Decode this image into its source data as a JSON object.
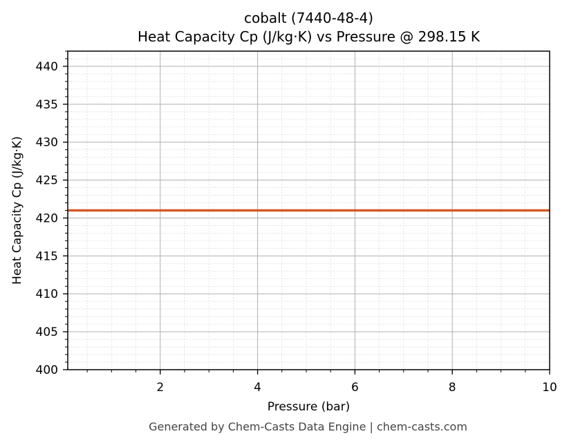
{
  "title": {
    "line1": "cobalt (7440-48-4)",
    "line2": "Heat Capacity Cp (J/kg·K) vs Pressure @ 298.15 K"
  },
  "footer": "Generated by Chem-Casts Data Engine | chem-casts.com",
  "colors": {
    "series": "#d35a2a",
    "axis": "#000000",
    "major_grid": "#b0b0b0",
    "minor_grid": "#dddddd",
    "footer_text": "#444444"
  },
  "chart_data": {
    "type": "line",
    "title": "cobalt (7440-48-4)\nHeat Capacity Cp (J/kg·K) vs Pressure @ 298.15 K",
    "xlabel": "Pressure (bar)",
    "ylabel": "Heat Capacity Cp (J/kg·K)",
    "xlim": [
      0.1,
      10
    ],
    "ylim": [
      400,
      442
    ],
    "x_ticks": [
      2,
      4,
      6,
      8,
      10
    ],
    "x_tick_labels": [
      "2",
      "4",
      "6",
      "8",
      "10"
    ],
    "y_ticks": [
      400,
      405,
      410,
      415,
      420,
      425,
      430,
      435,
      440
    ],
    "y_tick_labels": [
      "400",
      "405",
      "410",
      "415",
      "420",
      "425",
      "430",
      "435",
      "440"
    ],
    "x_minor_step": 0.5,
    "y_minor_step": 1,
    "grid": true,
    "legend": null,
    "series": [
      {
        "name": "Cp",
        "x": [
          0.1,
          1,
          2,
          3,
          4,
          5,
          6,
          7,
          8,
          9,
          10
        ],
        "values": [
          421.0,
          421.0,
          421.0,
          421.0,
          421.0,
          421.0,
          421.0,
          421.0,
          421.0,
          421.0,
          421.0
        ]
      }
    ]
  }
}
